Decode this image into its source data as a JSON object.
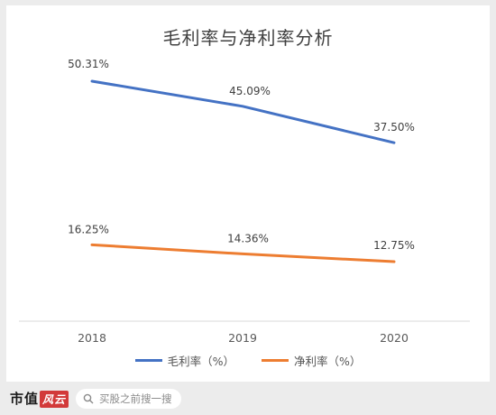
{
  "footer": {
    "brand_text": "市值",
    "brand_mark": "风云",
    "search_placeholder": "买股之前搜一搜"
  },
  "chart_data": {
    "type": "line",
    "title": "毛利率与净利率分析",
    "categories": [
      "2018",
      "2019",
      "2020"
    ],
    "ylim": [
      0,
      60
    ],
    "grid": false,
    "legend_position": "bottom",
    "series": [
      {
        "name": "毛利率（%）",
        "values": [
          50.31,
          45.09,
          37.5
        ],
        "labels": [
          "50.31%",
          "45.09%",
          "37.50%"
        ],
        "color": "#4472c4"
      },
      {
        "name": "净利率（%）",
        "values": [
          16.25,
          14.36,
          12.75
        ],
        "labels": [
          "16.25%",
          "14.36%",
          "12.75%"
        ],
        "color": "#ed7d31"
      }
    ]
  }
}
